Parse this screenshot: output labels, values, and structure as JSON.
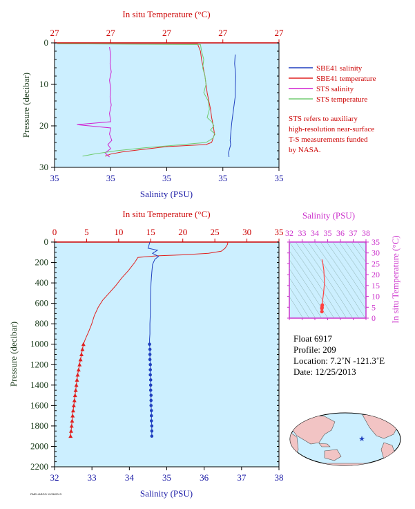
{
  "chart_data": [
    {
      "type": "line",
      "panel": "top",
      "xlabel_top": "In situ Temperature (°C)",
      "xticks_top": [
        "27",
        "27",
        "27",
        "27",
        "27"
      ],
      "xlabel_bottom": "Salinity (PSU)",
      "xticks_bottom": [
        "35",
        "35",
        "35",
        "35",
        "35"
      ],
      "ylabel": "Pressure (decibar)",
      "ylim": [
        0,
        30
      ],
      "yticks": [
        0,
        10,
        20,
        30
      ],
      "xlim_index": [
        0,
        4
      ],
      "legend_placement": "right",
      "legend": [
        {
          "name": "SBE41 salinity",
          "color": "#1f3fbf"
        },
        {
          "name": "SBE41 temperature",
          "color": "#e02020"
        },
        {
          "name": "STS salinity",
          "color": "#d020d0"
        },
        {
          "name": "STS temperature",
          "color": "#70cc70"
        }
      ],
      "note": [
        "STS refers to auxiliary",
        "high-resolution near-surface",
        "T-S measurements funded",
        "by NASA."
      ],
      "series": [
        {
          "name": "SBE41 salinity",
          "color": "#1f3fbf",
          "x": [
            3.22,
            3.21,
            3.23,
            3.22,
            3.22,
            3.2,
            3.18,
            3.16,
            3.15,
            3.14,
            3.13,
            3.14,
            3.12,
            3.1,
            3.11
          ],
          "y": [
            2.8,
            5,
            8,
            11,
            13,
            15,
            17,
            19,
            20.5,
            22,
            23.5,
            24.5,
            25.5,
            26.5,
            27.5
          ]
        },
        {
          "name": "SBE41 temperature",
          "color": "#e02020",
          "x": [
            0.05,
            2.55,
            2.6,
            2.62,
            2.65,
            2.68,
            2.7,
            2.72,
            2.75,
            2.78,
            2.8,
            2.83,
            2.85,
            2.8,
            2.7,
            2.0,
            1.5,
            1.2,
            1.0,
            0.9
          ],
          "y": [
            0.2,
            0.3,
            2,
            4,
            6,
            8,
            10,
            12,
            14,
            16,
            18,
            20,
            22,
            24,
            24.5,
            25,
            25.8,
            26.3,
            26.8,
            27.3
          ]
        },
        {
          "name": "STS salinity",
          "color": "#d020d0",
          "x": [
            0.98,
            1.0,
            0.99,
            1.01,
            0.98,
            1.0,
            0.99,
            1.01,
            0.98,
            1.0,
            0.4,
            1.0,
            0.98,
            1.02,
            0.95,
            1.0,
            0.9,
            0.98
          ],
          "y": [
            1,
            3,
            5,
            7,
            9,
            11,
            13,
            15,
            17,
            19,
            19.7,
            20.5,
            22,
            23.5,
            24.5,
            25.5,
            26.5,
            27.5
          ]
        },
        {
          "name": "STS temperature",
          "color": "#70cc70",
          "x": [
            0.05,
            2.6,
            2.62,
            2.66,
            2.64,
            2.68,
            2.7,
            2.66,
            2.74,
            2.76,
            2.72,
            2.8,
            2.84,
            2.78,
            2.86,
            2.82,
            2.7,
            2.2,
            1.6,
            1.1,
            0.7,
            0.5
          ],
          "y": [
            0.2,
            0.4,
            2,
            4,
            6,
            8,
            10,
            12,
            14,
            16,
            18,
            19,
            20,
            21,
            22,
            23,
            24,
            24.6,
            25.3,
            26,
            26.8,
            27.3
          ]
        }
      ]
    },
    {
      "type": "line",
      "panel": "bottom",
      "xlabel_top": "In situ Temperature (°C)",
      "xlim_top": [
        0,
        35
      ],
      "xticks_top": [
        0,
        5,
        10,
        15,
        20,
        25,
        30,
        35
      ],
      "xlabel_bottom": "Salinity (PSU)",
      "xlim_bottom": [
        32,
        38
      ],
      "xticks_bottom": [
        32,
        33,
        34,
        35,
        36,
        37,
        38
      ],
      "ylabel": "Pressure (decibar)",
      "ylim": [
        0,
        2200
      ],
      "yticks": [
        0,
        200,
        400,
        600,
        800,
        1000,
        1200,
        1400,
        1600,
        1800,
        2000,
        2200
      ],
      "series": [
        {
          "name": "temperature",
          "color": "#e02020",
          "axis": "top",
          "x": [
            27.0,
            27.0,
            26.6,
            26.0,
            24.0,
            20.0,
            16.0,
            13.0,
            12.5,
            11.5,
            10.5,
            9.5,
            8.5,
            7.5,
            6.8,
            6.2,
            5.8,
            5.3,
            4.8,
            4.5
          ],
          "y": [
            0,
            20,
            60,
            90,
            110,
            125,
            135,
            150,
            200,
            280,
            350,
            430,
            500,
            570,
            640,
            720,
            800,
            880,
            950,
            1000
          ]
        },
        {
          "name": "temperature-points",
          "color": "#e02020",
          "axis": "top",
          "marker": "triangle",
          "x": [
            4.5,
            4.35,
            4.2,
            4.05,
            3.9,
            3.75,
            3.6,
            3.5,
            3.4,
            3.3,
            3.2,
            3.1,
            3.0,
            2.9,
            2.82,
            2.74,
            2.66,
            2.58,
            2.5
          ],
          "y": [
            1000,
            1050,
            1100,
            1150,
            1200,
            1250,
            1300,
            1350,
            1400,
            1450,
            1500,
            1550,
            1600,
            1650,
            1700,
            1750,
            1800,
            1850,
            1900
          ]
        },
        {
          "name": "salinity",
          "color": "#1f3fbf",
          "axis": "bottom",
          "x": [
            34.55,
            34.5,
            34.75,
            34.62,
            34.78,
            34.68,
            34.62,
            34.6,
            34.58,
            34.57,
            34.56,
            34.56,
            34.55,
            34.55,
            34.54,
            34.54
          ],
          "y": [
            0,
            60,
            80,
            110,
            140,
            170,
            220,
            300,
            400,
            500,
            600,
            700,
            800,
            900,
            950,
            1000
          ]
        },
        {
          "name": "salinity-points",
          "color": "#1f3fbf",
          "axis": "bottom",
          "marker": "dot",
          "x": [
            34.54,
            34.55,
            34.55,
            34.55,
            34.56,
            34.56,
            34.56,
            34.57,
            34.57,
            34.57,
            34.58,
            34.58,
            34.58,
            34.59,
            34.59,
            34.59,
            34.6,
            34.6,
            34.6
          ],
          "y": [
            1000,
            1050,
            1100,
            1150,
            1200,
            1250,
            1300,
            1350,
            1400,
            1450,
            1500,
            1550,
            1600,
            1650,
            1700,
            1750,
            1800,
            1850,
            1900
          ]
        }
      ]
    },
    {
      "type": "scatter",
      "panel": "ts-diagram",
      "xlabel": "Salinity (PSU)",
      "xlim": [
        32,
        38
      ],
      "xticks": [
        32,
        33,
        34,
        35,
        36,
        37,
        38
      ],
      "ylabel": "In situ Temperature (°C)",
      "ylim": [
        0,
        35
      ],
      "yticks": [
        0,
        5,
        10,
        15,
        20,
        25,
        30,
        35
      ],
      "series": [
        {
          "name": "T-S",
          "color": "#ff4040",
          "x": [
            34.55,
            34.6,
            34.7,
            34.75,
            34.7,
            34.65,
            34.6,
            34.58,
            34.56,
            34.55,
            34.55
          ],
          "y": [
            27,
            26,
            22,
            16,
            13,
            10,
            8,
            6,
            5,
            4.5,
            3
          ]
        }
      ]
    }
  ],
  "float_info": {
    "float": "Float  6917",
    "profile": "Profile:  209",
    "location": "Location:  7.2˚N  -121.3˚E",
    "date": "Date:  12/25/2013"
  },
  "footer_text": "PMEL/ARGO 12/26/2013",
  "map": {
    "marker_color": "#1f3fbf"
  }
}
